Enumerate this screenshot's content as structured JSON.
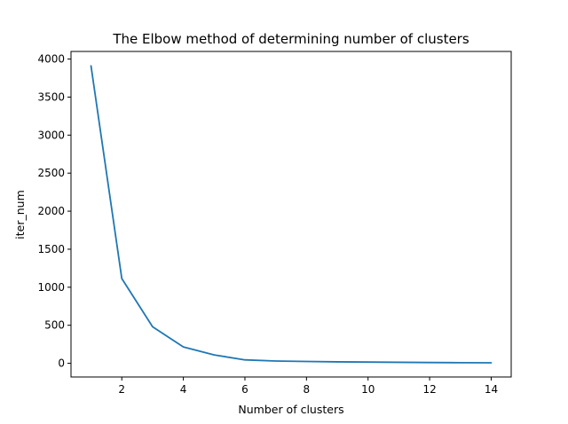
{
  "chart_data": {
    "type": "line",
    "title": "The Elbow method of determining number of clusters",
    "xlabel": "Number of clusters",
    "ylabel": "iter_num",
    "x": [
      1,
      2,
      3,
      4,
      5,
      6,
      7,
      8,
      9,
      10,
      11,
      12,
      13,
      14
    ],
    "series": [
      {
        "values": [
          3910,
          1115,
          480,
          215,
          110,
          45,
          30,
          24,
          19,
          16,
          13,
          10,
          8,
          7
        ],
        "color": "#1f77b4"
      }
    ],
    "xlim": [
      0.35,
      14.65
    ],
    "ylim": [
      -180,
      4100
    ],
    "xticks": [
      2,
      4,
      6,
      8,
      10,
      12,
      14
    ],
    "yticks": [
      0,
      500,
      1000,
      1500,
      2000,
      2500,
      3000,
      3500,
      4000
    ],
    "grid": false,
    "legend": "none"
  }
}
